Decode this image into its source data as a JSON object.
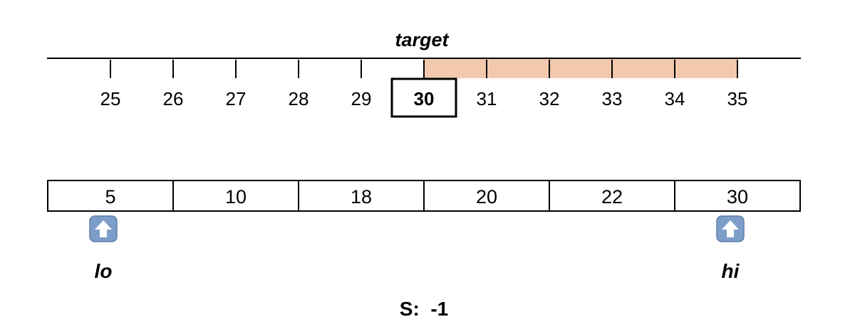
{
  "number_line": {
    "target_label": "target",
    "start": 25,
    "end": 35,
    "ticks": [
      "25",
      "26",
      "27",
      "28",
      "29",
      "30",
      "31",
      "32",
      "33",
      "34",
      "35"
    ],
    "target_value": 30,
    "shaded_range": [
      30,
      35
    ],
    "shade_color": "#f2c9ad"
  },
  "array": {
    "cells": [
      "5",
      "10",
      "18",
      "20",
      "22",
      "30"
    ]
  },
  "pointers": {
    "lo": {
      "label": "lo",
      "index": 0,
      "icon": "up-arrow-icon"
    },
    "hi": {
      "label": "hi",
      "index": 5,
      "icon": "up-arrow-icon"
    }
  },
  "status": {
    "text": "S:  -1"
  },
  "colors": {
    "icon_fill": "#7c9ec8",
    "icon_border": "#5d7fa8"
  }
}
